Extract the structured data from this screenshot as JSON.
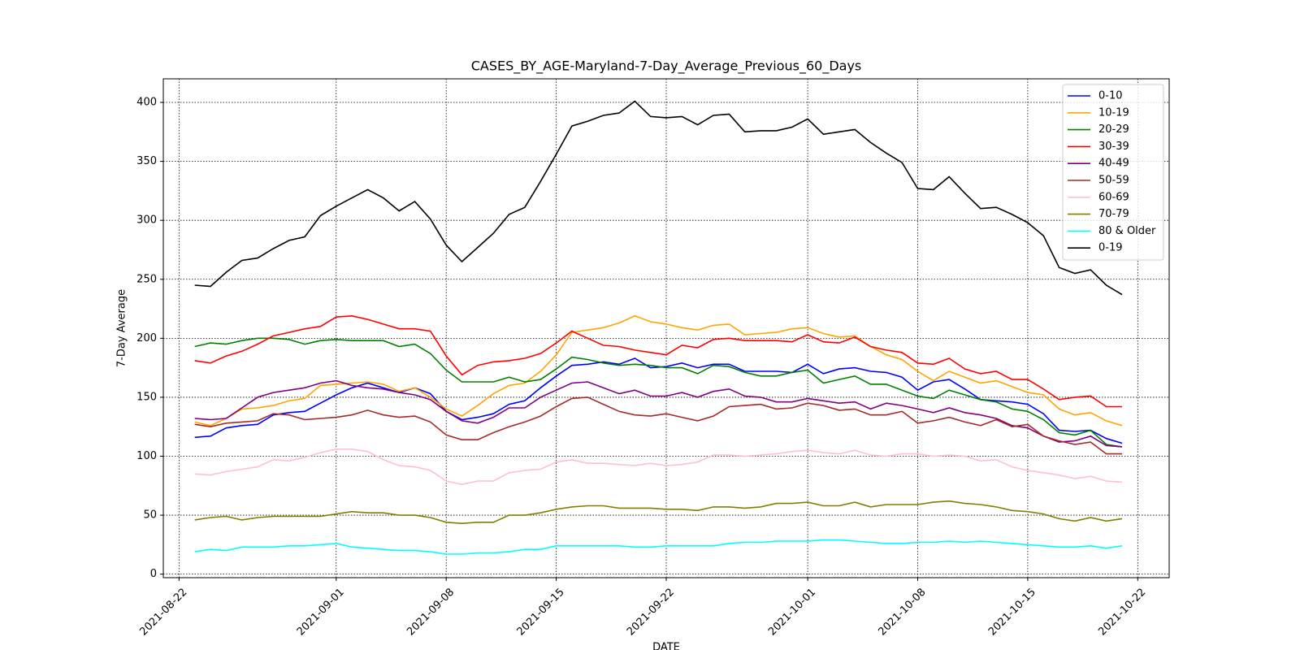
{
  "chart_data": {
    "type": "line",
    "title": "CASES_BY_AGE-Maryland-7-Day_Average_Previous_60_Days",
    "x_label": "DATE",
    "y_label": "7-Day Average",
    "x": [
      "2021-08-23",
      "2021-08-24",
      "2021-08-25",
      "2021-08-26",
      "2021-08-27",
      "2021-08-28",
      "2021-08-29",
      "2021-08-30",
      "2021-08-31",
      "2021-09-01",
      "2021-09-02",
      "2021-09-03",
      "2021-09-04",
      "2021-09-05",
      "2021-09-06",
      "2021-09-07",
      "2021-09-08",
      "2021-09-09",
      "2021-09-10",
      "2021-09-11",
      "2021-09-12",
      "2021-09-13",
      "2021-09-14",
      "2021-09-15",
      "2021-09-16",
      "2021-09-17",
      "2021-09-18",
      "2021-09-19",
      "2021-09-20",
      "2021-09-21",
      "2021-09-22",
      "2021-09-23",
      "2021-09-24",
      "2021-09-25",
      "2021-09-26",
      "2021-09-27",
      "2021-09-28",
      "2021-09-29",
      "2021-09-30",
      "2021-10-01",
      "2021-10-02",
      "2021-10-03",
      "2021-10-04",
      "2021-10-05",
      "2021-10-06",
      "2021-10-07",
      "2021-10-08",
      "2021-10-09",
      "2021-10-10",
      "2021-10-11",
      "2021-10-12",
      "2021-10-13",
      "2021-10-14",
      "2021-10-15",
      "2021-10-16",
      "2021-10-17",
      "2021-10-18",
      "2021-10-19",
      "2021-10-20",
      "2021-10-21"
    ],
    "series": [
      {
        "name": "0-10",
        "color": "#0000ff",
        "values": [
          116,
          117,
          124,
          126,
          127,
          135,
          137,
          138,
          145,
          152,
          158,
          162,
          158,
          154,
          158,
          153,
          138,
          131,
          133,
          136,
          144,
          147,
          158,
          168,
          177,
          178,
          180,
          178,
          183,
          175,
          176,
          179,
          175,
          178,
          178,
          172,
          172,
          172,
          171,
          178,
          170,
          174,
          175,
          172,
          171,
          167,
          156,
          163,
          165,
          157,
          148,
          147,
          146,
          144,
          136,
          122,
          121,
          122,
          115,
          111
        ]
      },
      {
        "name": "10-19",
        "color": "#ffa500",
        "values": [
          129,
          126,
          132,
          140,
          141,
          143,
          147,
          149,
          160,
          161,
          162,
          163,
          161,
          155,
          158,
          150,
          140,
          134,
          143,
          153,
          160,
          162,
          172,
          186,
          205,
          207,
          209,
          213,
          219,
          214,
          212,
          209,
          207,
          211,
          212,
          203,
          204,
          205,
          208,
          209,
          204,
          201,
          202,
          193,
          186,
          182,
          172,
          164,
          172,
          167,
          162,
          164,
          159,
          154,
          152,
          140,
          135,
          137,
          130,
          126
        ]
      },
      {
        "name": "20-29",
        "color": "#008000",
        "values": [
          193,
          196,
          195,
          198,
          200,
          200,
          199,
          195,
          198,
          199,
          198,
          198,
          198,
          193,
          195,
          187,
          173,
          163,
          163,
          163,
          167,
          163,
          165,
          174,
          184,
          182,
          179,
          177,
          178,
          177,
          175,
          175,
          170,
          177,
          176,
          171,
          168,
          168,
          171,
          173,
          162,
          165,
          168,
          161,
          161,
          156,
          151,
          149,
          156,
          152,
          148,
          146,
          140,
          138,
          131,
          120,
          118,
          122,
          110,
          108
        ]
      },
      {
        "name": "30-39",
        "color": "#ff0000",
        "values": [
          181,
          179,
          185,
          189,
          195,
          202,
          205,
          208,
          210,
          218,
          219,
          216,
          212,
          208,
          208,
          206,
          185,
          169,
          177,
          180,
          181,
          183,
          187,
          196,
          206,
          200,
          194,
          193,
          190,
          188,
          186,
          194,
          192,
          199,
          200,
          198,
          198,
          198,
          197,
          203,
          197,
          196,
          201,
          193,
          190,
          188,
          179,
          178,
          183,
          174,
          170,
          172,
          165,
          165,
          157,
          148,
          150,
          151,
          142,
          142
        ]
      },
      {
        "name": "40-49",
        "color": "#800080",
        "values": [
          132,
          131,
          132,
          141,
          150,
          154,
          156,
          158,
          162,
          164,
          160,
          158,
          157,
          154,
          152,
          148,
          138,
          130,
          128,
          133,
          141,
          141,
          150,
          156,
          162,
          163,
          158,
          153,
          156,
          151,
          151,
          154,
          150,
          155,
          157,
          151,
          150,
          146,
          146,
          149,
          147,
          145,
          146,
          140,
          145,
          143,
          140,
          137,
          141,
          137,
          135,
          132,
          126,
          124,
          117,
          112,
          113,
          117,
          109,
          108
        ]
      },
      {
        "name": "50-59",
        "color": "#a52a2a",
        "values": [
          127,
          125,
          128,
          129,
          130,
          136,
          135,
          131,
          132,
          133,
          135,
          139,
          135,
          133,
          134,
          129,
          118,
          114,
          114,
          120,
          125,
          129,
          134,
          142,
          149,
          150,
          144,
          138,
          135,
          134,
          136,
          133,
          130,
          134,
          142,
          143,
          144,
          140,
          141,
          145,
          143,
          139,
          140,
          135,
          135,
          138,
          128,
          130,
          133,
          129,
          126,
          131,
          125,
          127,
          117,
          113,
          110,
          112,
          102,
          102
        ]
      },
      {
        "name": "60-69",
        "color": "#ffc0cb",
        "values": [
          85,
          84,
          87,
          89,
          91,
          97,
          96,
          99,
          103,
          106,
          106,
          104,
          97,
          92,
          91,
          88,
          79,
          76,
          79,
          79,
          86,
          88,
          89,
          95,
          97,
          94,
          94,
          93,
          92,
          94,
          92,
          93,
          95,
          101,
          101,
          100,
          101,
          102,
          104,
          105,
          103,
          102,
          105,
          101,
          100,
          102,
          102,
          100,
          101,
          100,
          96,
          97,
          91,
          88,
          86,
          84,
          81,
          83,
          79,
          78
        ]
      },
      {
        "name": "70-79",
        "color": "#808000",
        "values": [
          46,
          48,
          49,
          46,
          48,
          49,
          49,
          49,
          49,
          51,
          53,
          52,
          52,
          50,
          50,
          48,
          44,
          43,
          44,
          44,
          50,
          50,
          52,
          55,
          57,
          58,
          58,
          56,
          56,
          56,
          55,
          55,
          54,
          57,
          57,
          56,
          57,
          60,
          60,
          61,
          58,
          58,
          61,
          57,
          59,
          59,
          59,
          61,
          62,
          60,
          59,
          57,
          54,
          53,
          51,
          47,
          45,
          48,
          45,
          47
        ]
      },
      {
        "name": "80 & Older",
        "color": "#00ffff",
        "values": [
          19,
          21,
          20,
          23,
          23,
          23,
          24,
          24,
          25,
          26,
          23,
          22,
          21,
          20,
          20,
          19,
          17,
          17,
          18,
          18,
          19,
          21,
          21,
          24,
          24,
          24,
          24,
          24,
          23,
          23,
          24,
          24,
          24,
          24,
          26,
          27,
          27,
          28,
          28,
          28,
          29,
          29,
          28,
          27,
          26,
          26,
          27,
          27,
          28,
          27,
          28,
          27,
          26,
          25,
          24,
          23,
          23,
          24,
          22,
          24
        ]
      },
      {
        "name": "0-19",
        "color": "#000000",
        "values": [
          245,
          244,
          256,
          266,
          268,
          276,
          283,
          286,
          304,
          312,
          319,
          326,
          319,
          308,
          316,
          301,
          279,
          265,
          277,
          289,
          305,
          311,
          333,
          356,
          380,
          384,
          389,
          391,
          401,
          388,
          387,
          388,
          381,
          389,
          390,
          375,
          376,
          376,
          379,
          386,
          373,
          375,
          377,
          366,
          357,
          349,
          327,
          326,
          337,
          323,
          310,
          311,
          305,
          298,
          287,
          260,
          255,
          258,
          245,
          237
        ]
      }
    ],
    "xlim": [
      "2021-08-21",
      "2021-10-24"
    ],
    "xticks": [
      "2021-08-22",
      "2021-09-01",
      "2021-09-08",
      "2021-09-15",
      "2021-09-22",
      "2021-10-01",
      "2021-10-08",
      "2021-10-15",
      "2021-10-22"
    ],
    "ylim": [
      -3,
      420
    ],
    "yticks": [
      0,
      50,
      100,
      150,
      200,
      250,
      300,
      350,
      400
    ],
    "grid": true,
    "legend": "upper right"
  }
}
